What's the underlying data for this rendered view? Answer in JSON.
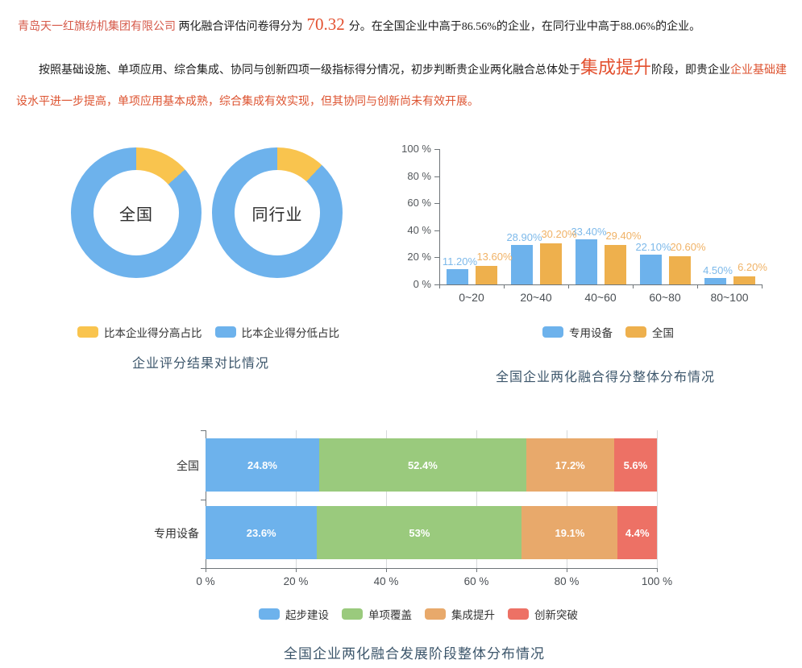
{
  "para1": {
    "company": "青岛天一红旗纺机集团有限公司",
    "mid": "两化融合评估问卷得分为",
    "score": "70.32",
    "tail": "分。在全国企业中高于86.56%的企业，在同行业中高于88.06%的企业。"
  },
  "para2": {
    "lead": "按照基础设施、单项应用、综合集成、协同与创新四项一级指标得分情况，初步判断贵企业两化融合总体处于",
    "stage": "集成提升",
    "mid": "阶段，即贵企业",
    "tail": "企业基础建设水平进一步提高，单项应用基本成熟，综合集成有效实现，但其协同与创新尚未有效开展。"
  },
  "colors": {
    "blue": "#6db2ec",
    "yellow": "#f9c44e",
    "bar_orange": "#eeb04d",
    "green": "#9aca7d",
    "stacked_orange": "#e8a96b",
    "stacked_red": "#ed7165",
    "label_blue": "#7db9ea",
    "label_orange": "#f0b266",
    "title": "#3c566b"
  },
  "chart_data": [
    {
      "type": "pie",
      "title": "企业评分结果对比情况",
      "legend": [
        {
          "label": "比本企业得分高占比",
          "color": "#f9c44e"
        },
        {
          "label": "比本企业得分低占比",
          "color": "#6db2ec"
        }
      ],
      "pies": [
        {
          "label": "全国",
          "higher_pct": 13.44,
          "lower_pct": 86.56
        },
        {
          "label": "同行业",
          "higher_pct": 11.94,
          "lower_pct": 88.06
        }
      ]
    },
    {
      "type": "bar",
      "title": "全国企业两化融合得分整体分布情况",
      "categories": [
        "0~20",
        "20~40",
        "40~60",
        "60~80",
        "80~100"
      ],
      "series": [
        {
          "name": "专用设备",
          "color": "#6db2ec",
          "label_color": "#7db9ea",
          "values": [
            11.2,
            28.9,
            33.4,
            22.1,
            4.5
          ],
          "labels": [
            "11.20%",
            "28.90%",
            "33.40%",
            "22.10%",
            "4.50%"
          ]
        },
        {
          "name": "全国",
          "color": "#eeb04d",
          "label_color": "#f0b266",
          "values": [
            13.6,
            30.2,
            29.4,
            20.6,
            6.2
          ],
          "labels": [
            "13.60%",
            "30.20%",
            "29.40%",
            "20.60%",
            "6.20%"
          ]
        }
      ],
      "ylim": [
        0,
        100
      ],
      "yticks": [
        "0 %",
        "20 %",
        "40 %",
        "60 %",
        "80 %",
        "100 %"
      ],
      "grid": false,
      "legend_position": "bottom"
    },
    {
      "type": "bar-horizontal-stacked",
      "title": "全国企业两化融合发展阶段整体分布情况",
      "categories": [
        "全国",
        "专用设备"
      ],
      "series": [
        {
          "name": "起步建设",
          "color": "#6db2ec",
          "values": [
            24.8,
            23.6
          ],
          "labels": [
            "24.8%",
            "23.6%"
          ]
        },
        {
          "name": "单项覆盖",
          "color": "#9aca7d",
          "values": [
            52.4,
            53
          ],
          "labels": [
            "52.4%",
            "53%"
          ]
        },
        {
          "name": "集成提升",
          "color": "#e8a96b",
          "values": [
            17.2,
            19.1
          ],
          "labels": [
            "17.2%",
            "19.1%"
          ]
        },
        {
          "name": "创新突破",
          "color": "#ed7165",
          "values": [
            5.6,
            4.4
          ],
          "labels": [
            "5.6%",
            "4.4%"
          ]
        }
      ],
      "xlim": [
        0,
        100
      ],
      "xticks": [
        "0 %",
        "20 %",
        "40 %",
        "60 %",
        "80 %",
        "100 %"
      ],
      "grid": true,
      "legend_position": "bottom"
    }
  ]
}
